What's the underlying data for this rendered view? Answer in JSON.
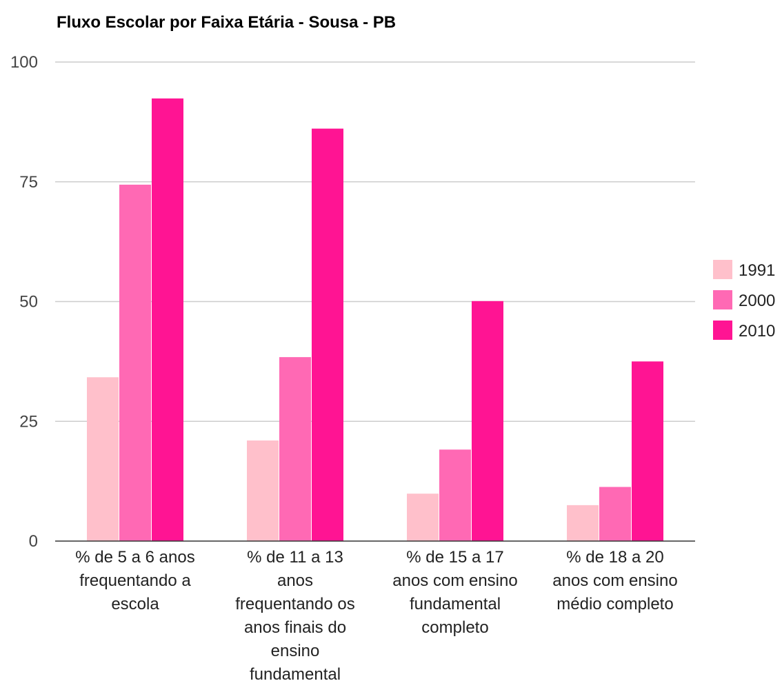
{
  "chart_data": {
    "type": "bar",
    "title": "Fluxo Escolar por Faixa Etária - Sousa - PB",
    "xlabel": "",
    "ylabel": "",
    "ylim": [
      0,
      100
    ],
    "yticks": [
      "0",
      "25",
      "50",
      "75",
      "100"
    ],
    "grid": true,
    "legend_position": "right",
    "categories": [
      [
        "% de 5 a 6 anos",
        "frequentando a",
        "escola"
      ],
      [
        "% de 11 a 13",
        "anos",
        "frequentando os",
        "anos finais do",
        "ensino",
        "fundamental"
      ],
      [
        "% de 15 a 17",
        "anos com ensino",
        "fundamental",
        "completo"
      ],
      [
        "% de 18 a 20",
        "anos com ensino",
        "médio completo"
      ]
    ],
    "series": [
      {
        "name": "1991",
        "color": "#ffc0cb",
        "values": [
          34.2,
          21.0,
          9.9,
          7.5
        ]
      },
      {
        "name": "2000",
        "color": "#ff69b4",
        "values": [
          74.4,
          38.4,
          19.1,
          11.3
        ]
      },
      {
        "name": "2010",
        "color": "#ff1493",
        "values": [
          92.4,
          86.1,
          50.1,
          37.5
        ]
      }
    ]
  }
}
